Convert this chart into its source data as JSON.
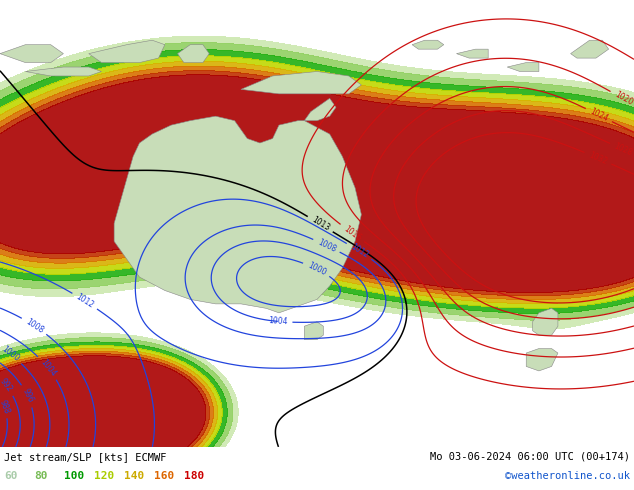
{
  "title_left": "Jet stream/SLP [kts] ECMWF",
  "title_right": "Mo 03-06-2024 06:00 UTC (00+174)",
  "credit": "©weatheronline.co.uk",
  "legend_values": [
    60,
    80,
    100,
    120,
    140,
    160,
    180
  ],
  "legend_text_colors": [
    "#aaccaa",
    "#77bb55",
    "#009900",
    "#aacc00",
    "#ccaa00",
    "#dd6600",
    "#cc0000"
  ],
  "bg_color": "#e0e8e8",
  "bottom_bar_color": "#ffffff",
  "figsize": [
    6.34,
    4.9
  ],
  "dpi": 100,
  "jet_colormap": [
    [
      60,
      "#d4eec8"
    ],
    [
      80,
      "#a8dc88"
    ],
    [
      100,
      "#50b830"
    ],
    [
      120,
      "#c8d800"
    ],
    [
      140,
      "#e8b000"
    ],
    [
      160,
      "#e06000"
    ],
    [
      180,
      "#cc0000"
    ]
  ]
}
